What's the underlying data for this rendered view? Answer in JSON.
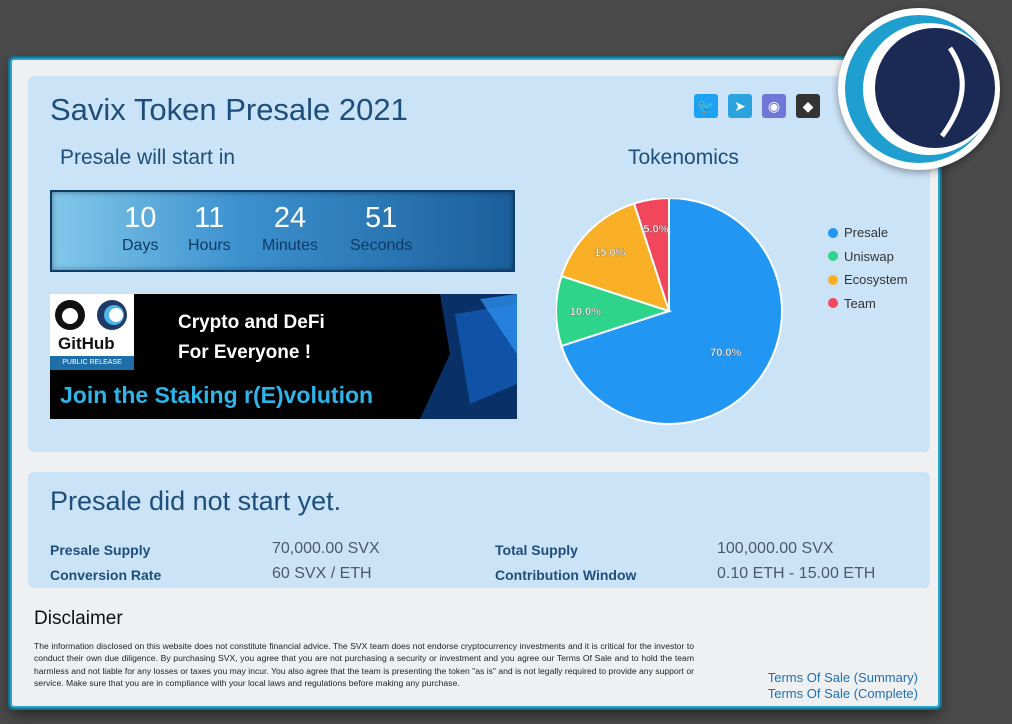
{
  "header": {
    "title": "Savix Token Presale 2021",
    "socials": [
      {
        "icon": "twitter-icon",
        "glyph": "🐦",
        "color": "#1da1f2"
      },
      {
        "icon": "telegram-icon",
        "glyph": "➤",
        "color": "#2aa3de"
      },
      {
        "icon": "discord-icon",
        "glyph": "◉",
        "color": "#6f78d9"
      },
      {
        "icon": "github-icon",
        "glyph": "◆",
        "color": "#333333"
      }
    ]
  },
  "countdown": {
    "heading": "Presale will start in",
    "units": [
      {
        "value": "10",
        "label": "Days"
      },
      {
        "value": "11",
        "label": "Hours"
      },
      {
        "value": "24",
        "label": "Minutes"
      },
      {
        "value": "51",
        "label": "Seconds"
      }
    ]
  },
  "banner": {
    "github_word": "GitHub",
    "github_sub": "PUBLIC RELEASE",
    "line1": "Crypto and DeFi",
    "line2": "For Everyone !",
    "line3": "Join the Staking r(E)volution"
  },
  "tokenomics": {
    "heading": "Tokenomics"
  },
  "chart_data": {
    "type": "pie",
    "categories": [
      "Presale",
      "Uniswap",
      "Ecosystem",
      "Team"
    ],
    "values": [
      70.0,
      10.0,
      15.0,
      5.0
    ],
    "labels": [
      "70.0%",
      "10.0%",
      "15.0%",
      "5.0%"
    ],
    "colors": [
      "#2196f3",
      "#2ed48a",
      "#f9b026",
      "#f2465c"
    ],
    "legend_position": "right"
  },
  "status": {
    "title": "Presale did not start yet.",
    "rows": [
      {
        "label": "Presale Supply",
        "value": "70,000.00 SVX"
      },
      {
        "label": "Conversion Rate",
        "value": "60 SVX / ETH"
      },
      {
        "label": "Total Supply",
        "value": "100,000.00 SVX"
      },
      {
        "label": "Contribution Window",
        "value": "0.10 ETH - 15.00 ETH"
      }
    ]
  },
  "disclaimer": {
    "title": "Disclaimer",
    "text": "The information disclosed on this website does not constitute financial advice. The SVX team does not endorse cryptocurrency investments and it is critical for the investor to conduct their own due diligence. By purchasing SVX, you agree that you are not purchasing a security or investment and you agree our Terms Of Sale and to hold the team harmless and not liable for any losses or taxes you may incur. You also agree that the team is presenting the token \"as is\" and is not legally required to provide any support or service. Make sure that you are in compliance with your local laws and regulations before making any purchase."
  },
  "links": {
    "tos_summary": "Terms Of Sale (Summary)",
    "tos_complete": "Terms Of Sale (Complete)"
  }
}
